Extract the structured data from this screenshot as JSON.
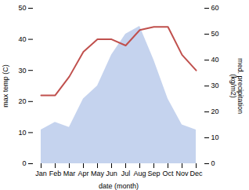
{
  "chart_data": {
    "type": "line",
    "categories": [
      "Jan",
      "Feb",
      "Mar",
      "Apr",
      "May",
      "Jun",
      "Jul",
      "Aug",
      "Sep",
      "Oct",
      "Nov",
      "Dec"
    ],
    "series": [
      {
        "type": "area",
        "axis": "y2",
        "color": "#c5d3ee",
        "values": [
          13,
          16,
          14,
          25,
          30,
          42,
          50,
          53,
          40,
          25,
          15,
          13
        ]
      },
      {
        "type": "line",
        "color": "#c0504d",
        "values": [
          22,
          22,
          28,
          36,
          40,
          40,
          38,
          43,
          44,
          44,
          35,
          30
        ]
      }
    ],
    "xlabel": "date (month)",
    "ylabel": "max temp (C)",
    "y2label": "med. precipitation\n(kg/m2)",
    "ylim": [
      0,
      50
    ],
    "yticks": [
      0,
      10,
      20,
      30,
      40,
      50
    ],
    "y2lim": [
      0,
      60
    ],
    "y2ticks": [
      0,
      10,
      20,
      30,
      40,
      50,
      60
    ],
    "grid": false
  }
}
